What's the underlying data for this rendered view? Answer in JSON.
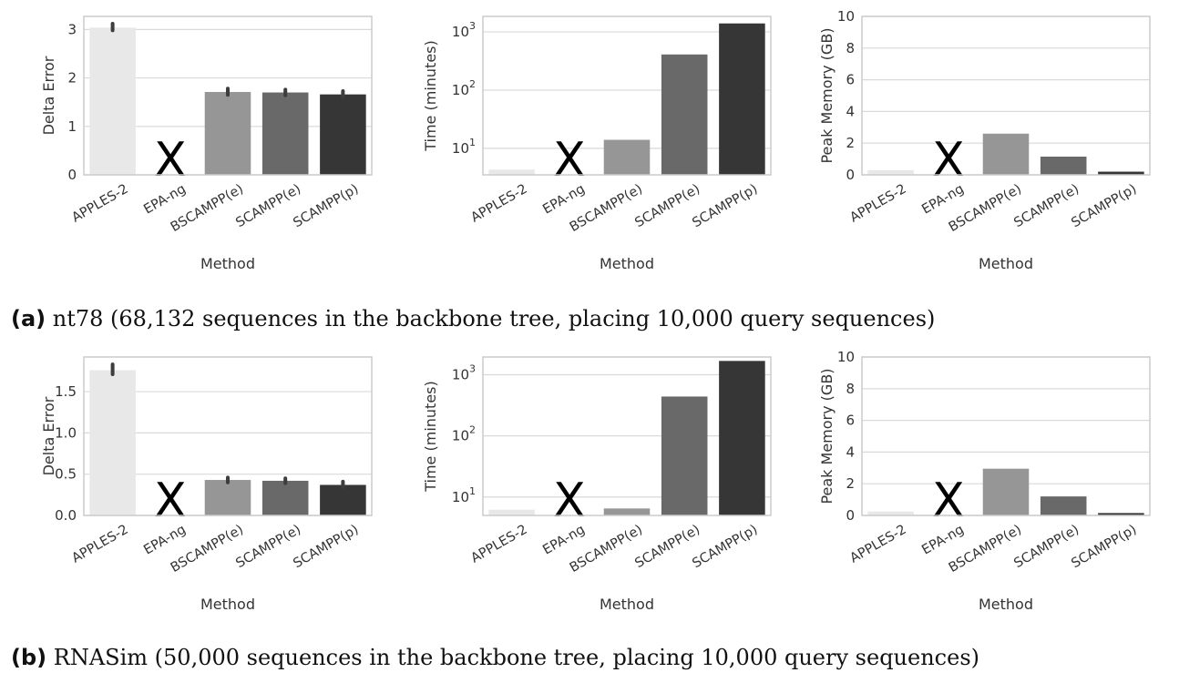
{
  "captions": [
    {
      "label": "(a)",
      "text": "nt78 (68,132 sequences in the backbone tree, placing 10,000 query sequences)"
    },
    {
      "label": "(b)",
      "text": "RNASim (50,000 sequences in the backbone tree, placing 10,000 query sequences)"
    }
  ],
  "colors": [
    "#e8e8e8",
    "#000000",
    "#969696",
    "#696969",
    "#363636"
  ],
  "missing_mark": "X",
  "chart_data": [
    {
      "type": "bar",
      "row": 0,
      "col": 0,
      "categories": [
        "APPLES-2",
        "EPA-ng",
        "BSCAMPP(e)",
        "SCAMPP(e)",
        "SCAMPP(p)"
      ],
      "values": [
        3.04,
        null,
        1.71,
        1.7,
        1.66
      ],
      "err": [
        [
          2.98,
          3.12
        ],
        null,
        [
          1.65,
          1.78
        ],
        [
          1.64,
          1.76
        ],
        [
          1.6,
          1.73
        ]
      ],
      "missing": [
        false,
        true,
        false,
        false,
        false
      ],
      "xlabel": "Method",
      "ylabel": "Delta Error",
      "scale": "linear",
      "ylim": [
        0,
        3.27
      ],
      "yticks": [
        0,
        1,
        2,
        3
      ],
      "yticklabels": [
        "0",
        "1",
        "2",
        "3"
      ],
      "grid": true
    },
    {
      "type": "bar",
      "row": 0,
      "col": 1,
      "categories": [
        "APPLES-2",
        "EPA-ng",
        "BSCAMPP(e)",
        "SCAMPP(e)",
        "SCAMPP(p)"
      ],
      "values": [
        4.3,
        null,
        14,
        410,
        1400
      ],
      "err": null,
      "missing": [
        false,
        true,
        false,
        false,
        false
      ],
      "xlabel": "Method",
      "ylabel": "Time (minutes)",
      "scale": "log",
      "ylim": [
        3.5,
        1850
      ],
      "yticks": [
        10,
        100,
        1000
      ],
      "yticklabels": [
        "10^1",
        "10^2",
        "10^3"
      ],
      "grid": true
    },
    {
      "type": "bar",
      "row": 0,
      "col": 2,
      "categories": [
        "APPLES-2",
        "EPA-ng",
        "BSCAMPP(e)",
        "SCAMPP(e)",
        "SCAMPP(p)"
      ],
      "values": [
        0.3,
        null,
        2.6,
        1.15,
        0.2
      ],
      "err": null,
      "missing": [
        false,
        true,
        false,
        false,
        false
      ],
      "xlabel": "Method",
      "ylabel": "Peak Memory (GB)",
      "scale": "linear",
      "ylim": [
        0,
        10
      ],
      "yticks": [
        0,
        2,
        4,
        6,
        8,
        10
      ],
      "yticklabels": [
        "0",
        "2",
        "4",
        "6",
        "8",
        "10"
      ],
      "grid": true
    },
    {
      "type": "bar",
      "row": 1,
      "col": 0,
      "categories": [
        "APPLES-2",
        "EPA-ng",
        "BSCAMPP(e)",
        "SCAMPP(e)",
        "SCAMPP(p)"
      ],
      "values": [
        1.76,
        null,
        0.43,
        0.42,
        0.37
      ],
      "err": [
        [
          1.71,
          1.83
        ],
        null,
        [
          0.4,
          0.46
        ],
        [
          0.39,
          0.45
        ],
        [
          0.34,
          0.41
        ]
      ],
      "missing": [
        false,
        true,
        false,
        false,
        false
      ],
      "xlabel": "Method",
      "ylabel": "Delta Error",
      "scale": "linear",
      "ylim": [
        0,
        1.92
      ],
      "yticks": [
        0,
        0.5,
        1.0,
        1.5
      ],
      "yticklabels": [
        "0.0",
        "0.5",
        "1.0",
        "1.5"
      ],
      "grid": true
    },
    {
      "type": "bar",
      "row": 1,
      "col": 1,
      "categories": [
        "APPLES-2",
        "EPA-ng",
        "BSCAMPP(e)",
        "SCAMPP(e)",
        "SCAMPP(p)"
      ],
      "values": [
        6.2,
        null,
        6.5,
        440,
        1680
      ],
      "err": null,
      "missing": [
        false,
        true,
        false,
        false,
        false
      ],
      "xlabel": "Method",
      "ylabel": "Time (minutes)",
      "scale": "log",
      "ylim": [
        5,
        1950
      ],
      "yticks": [
        10,
        100,
        1000
      ],
      "yticklabels": [
        "10^1",
        "10^2",
        "10^3"
      ],
      "grid": true
    },
    {
      "type": "bar",
      "row": 1,
      "col": 2,
      "categories": [
        "APPLES-2",
        "EPA-ng",
        "BSCAMPP(e)",
        "SCAMPP(e)",
        "SCAMPP(p)"
      ],
      "values": [
        0.25,
        null,
        2.95,
        1.2,
        0.15
      ],
      "err": null,
      "missing": [
        false,
        true,
        false,
        false,
        false
      ],
      "xlabel": "Method",
      "ylabel": "Peak Memory (GB)",
      "scale": "linear",
      "ylim": [
        0,
        10
      ],
      "yticks": [
        0,
        2,
        4,
        6,
        8,
        10
      ],
      "yticklabels": [
        "0",
        "2",
        "4",
        "6",
        "8",
        "10"
      ],
      "grid": true
    }
  ]
}
